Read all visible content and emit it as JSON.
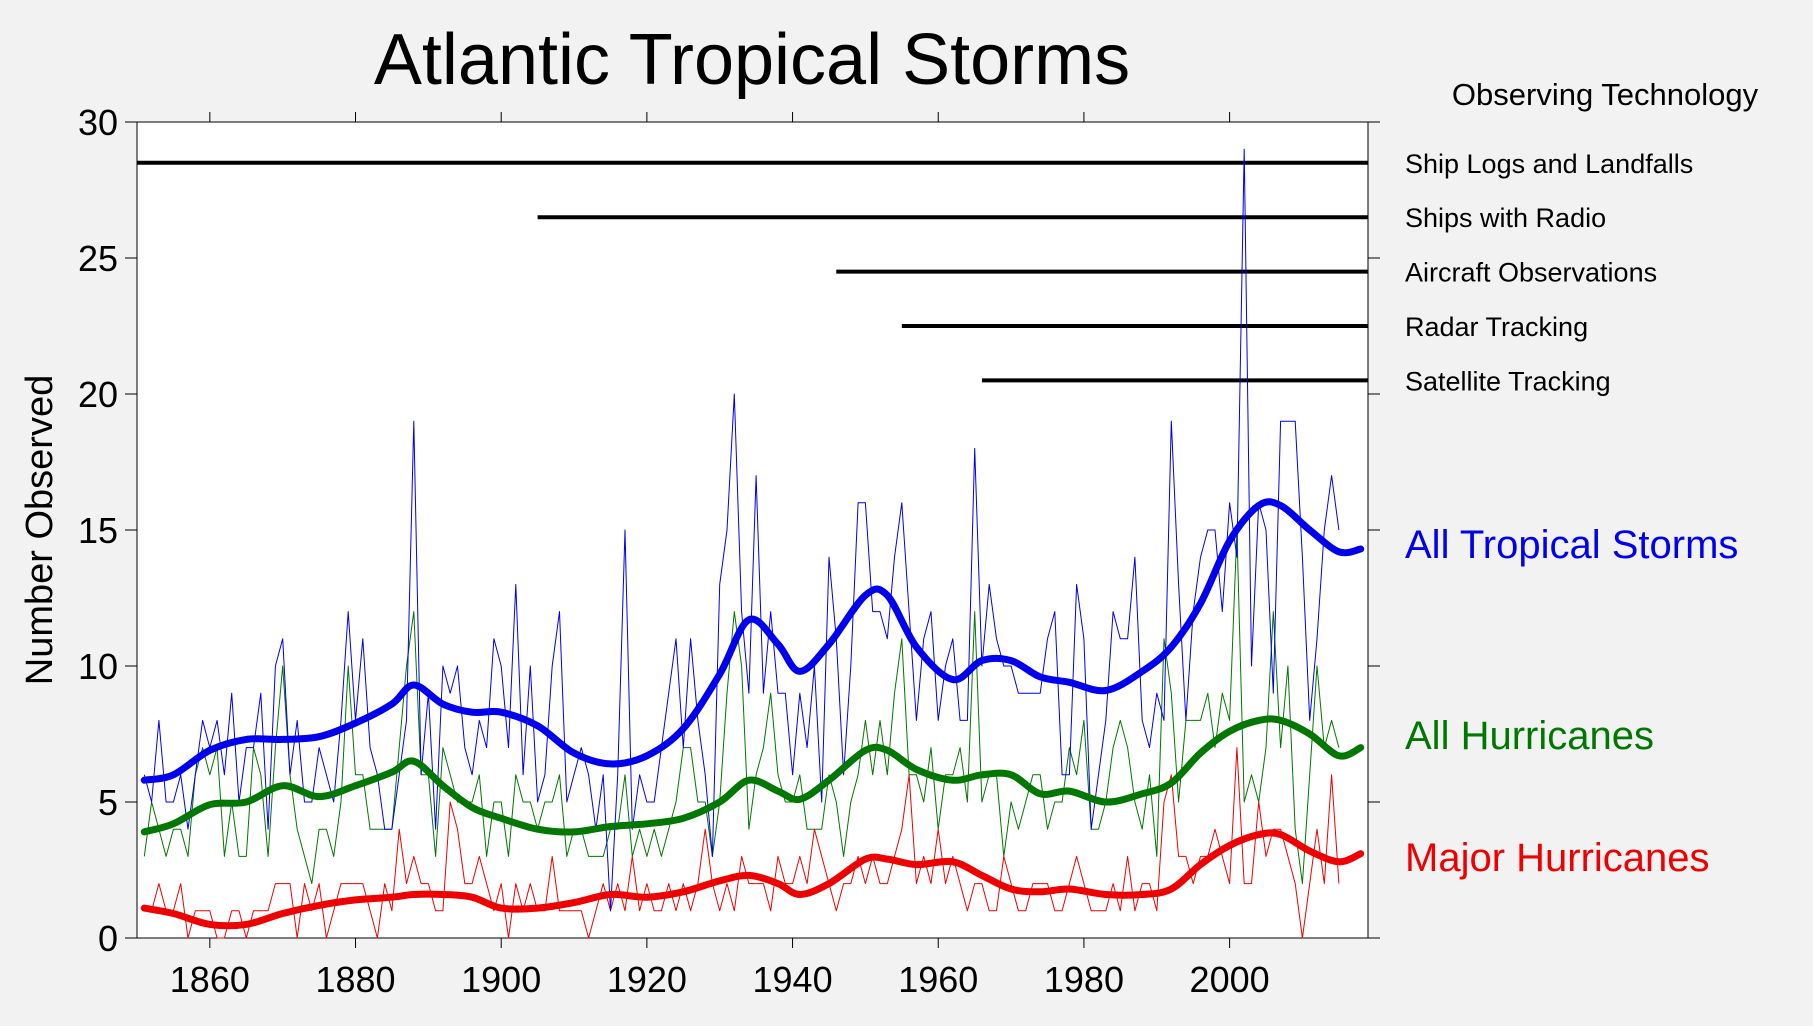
{
  "chart_data": {
    "type": "line",
    "title": "Atlantic Tropical Storms",
    "ylabel": "Number Observed",
    "xlabel": "",
    "xlim": [
      1850,
      2019
    ],
    "ylim": [
      0,
      30
    ],
    "x_ticks": [
      1860,
      1880,
      1900,
      1920,
      1940,
      1960,
      1980,
      2000
    ],
    "y_ticks": [
      0,
      5,
      10,
      15,
      20,
      25,
      30
    ],
    "grid": false,
    "tech_header": "Observing Technology",
    "technology": [
      {
        "label": "Ship Logs and Landfalls",
        "start": 1850,
        "level": 28.5
      },
      {
        "label": "Ships with Radio",
        "start": 1905,
        "level": 26.5
      },
      {
        "label": "Aircraft Observations",
        "start": 1946,
        "level": 24.5
      },
      {
        "label": "Radar Tracking",
        "start": 1955,
        "level": 22.5
      },
      {
        "label": "Satellite Tracking",
        "start": 1966,
        "level": 20.5
      }
    ],
    "x_start": 1851,
    "series": [
      {
        "name": "All Tropical Storms",
        "color": "#0000ee",
        "values": [
          6,
          5,
          8,
          5,
          5,
          6,
          4,
          6,
          8,
          7,
          8,
          6,
          9,
          5,
          7,
          7,
          9,
          4,
          10,
          11,
          6,
          8,
          5,
          5,
          7,
          6,
          5,
          8,
          12,
          8,
          11,
          7,
          6,
          4,
          4,
          6,
          8,
          19,
          6,
          9,
          4,
          10,
          9,
          10,
          7,
          6,
          8,
          7,
          11,
          10,
          7,
          13,
          6,
          10,
          5,
          6,
          10,
          12,
          5,
          6,
          7,
          6,
          4,
          6,
          1,
          6,
          15,
          4,
          6,
          5,
          5,
          7,
          9,
          11,
          7,
          11,
          8,
          6,
          3,
          13,
          15,
          20,
          12,
          9,
          17,
          9,
          12,
          9,
          9,
          6,
          9,
          7,
          10,
          5,
          14,
          11,
          6,
          10,
          16,
          16,
          12,
          12,
          11,
          14,
          16,
          12,
          8,
          11,
          12,
          8,
          10,
          11,
          8,
          8,
          18,
          10,
          13,
          11,
          10,
          10,
          9,
          9,
          9,
          9,
          11,
          12,
          6,
          6,
          13,
          11,
          4,
          6,
          8,
          12,
          11,
          11,
          14,
          8,
          7,
          9,
          8,
          19,
          13,
          8,
          12,
          14,
          15,
          15,
          12,
          16,
          14,
          29,
          10,
          16,
          15,
          9,
          19,
          19,
          19,
          14,
          8,
          11,
          15,
          17,
          15
        ]
      },
      {
        "name": "All Hurricanes",
        "color": "#007700",
        "values": [
          3,
          5,
          4,
          3,
          4,
          4,
          3,
          6,
          7,
          6,
          7,
          3,
          5,
          3,
          3,
          7,
          6,
          3,
          7,
          10,
          6,
          4,
          3,
          2,
          4,
          4,
          3,
          5,
          10,
          6,
          6,
          4,
          4,
          4,
          4,
          7,
          10,
          12,
          6,
          6,
          3,
          7,
          6,
          5,
          5,
          5,
          6,
          3,
          5,
          5,
          3,
          6,
          5,
          5,
          4,
          5,
          5,
          6,
          3,
          4,
          4,
          3,
          3,
          3,
          4,
          4,
          6,
          3,
          4,
          3,
          4,
          3,
          4,
          5,
          7,
          7,
          5,
          5,
          3,
          5,
          9,
          12,
          10,
          4,
          6,
          7,
          9,
          6,
          5,
          5,
          6,
          4,
          4,
          4,
          6,
          5,
          3,
          5,
          6,
          8,
          6,
          8,
          6,
          9,
          11,
          6,
          6,
          5,
          7,
          4,
          6,
          6,
          7,
          5,
          12,
          5,
          6,
          6,
          3,
          5,
          4,
          5,
          6,
          6,
          4,
          5,
          5,
          7,
          6,
          8,
          4,
          4,
          5,
          7,
          8,
          7,
          5,
          4,
          6,
          3,
          11,
          9,
          5,
          8,
          8,
          8,
          9,
          7,
          9,
          8,
          15,
          5,
          6,
          5,
          7,
          12,
          7,
          10,
          4,
          2,
          6,
          10,
          7,
          8,
          7
        ]
      },
      {
        "name": "Major Hurricanes",
        "color": "#ee0000",
        "values": [
          1,
          1,
          2,
          1,
          1,
          2,
          0,
          1,
          1,
          1,
          0,
          0,
          1,
          1,
          0,
          1,
          1,
          1,
          2,
          2,
          2,
          0,
          2,
          1,
          2,
          0,
          1,
          2,
          2,
          2,
          2,
          1,
          0,
          2,
          1,
          4,
          2,
          3,
          2,
          2,
          1,
          1,
          5,
          4,
          2,
          2,
          3,
          2,
          1,
          2,
          0,
          2,
          1,
          2,
          1,
          1,
          3,
          1,
          1,
          1,
          1,
          0,
          1,
          2,
          1,
          2,
          1,
          3,
          1,
          2,
          1,
          1,
          2,
          1,
          2,
          1,
          2,
          4,
          2,
          1,
          2,
          1,
          3,
          2,
          2,
          2,
          1,
          3,
          2,
          2,
          3,
          2,
          4,
          3,
          2,
          1,
          2,
          2,
          3,
          2,
          3,
          2,
          2,
          3,
          4,
          6,
          2,
          3,
          2,
          4,
          2,
          3,
          2,
          1,
          2,
          2,
          1,
          1,
          3,
          2,
          1,
          1,
          2,
          2,
          2,
          1,
          1,
          2,
          3,
          2,
          1,
          1,
          1,
          2,
          1,
          3,
          1,
          2,
          2,
          1,
          5,
          6,
          3,
          3,
          2,
          3,
          3,
          4,
          3,
          2,
          7,
          2,
          2,
          5,
          3,
          4,
          4,
          3,
          2,
          0,
          2,
          4,
          2,
          6,
          2
        ]
      }
    ],
    "smoothed": {
      "x": [
        1851,
        1855,
        1860,
        1865,
        1870,
        1875,
        1880,
        1885,
        1888,
        1892,
        1896,
        1900,
        1905,
        1910,
        1915,
        1920,
        1925,
        1930,
        1934,
        1938,
        1941,
        1945,
        1950,
        1953,
        1957,
        1962,
        1966,
        1970,
        1974,
        1978,
        1983,
        1988,
        1992,
        1996,
        2000,
        2004,
        2007,
        2011,
        2015,
        2018
      ],
      "series": [
        {
          "name": "All Tropical Storms",
          "color": "#0000ee",
          "values": [
            5.8,
            6.0,
            6.9,
            7.3,
            7.3,
            7.4,
            7.9,
            8.6,
            9.3,
            8.6,
            8.3,
            8.3,
            7.8,
            6.8,
            6.4,
            6.7,
            7.7,
            9.7,
            11.7,
            10.8,
            9.8,
            10.8,
            12.6,
            12.6,
            10.7,
            9.5,
            10.2,
            10.2,
            9.6,
            9.4,
            9.1,
            9.8,
            10.7,
            12.3,
            14.6,
            15.9,
            15.9,
            15.0,
            14.2,
            14.3
          ]
        },
        {
          "name": "All Hurricanes",
          "color": "#007700",
          "values": [
            3.9,
            4.2,
            4.9,
            5.0,
            5.6,
            5.2,
            5.6,
            6.1,
            6.5,
            5.6,
            4.8,
            4.4,
            4.0,
            3.9,
            4.1,
            4.2,
            4.4,
            5.0,
            5.8,
            5.4,
            5.1,
            5.8,
            6.9,
            6.9,
            6.2,
            5.8,
            6.0,
            6.0,
            5.3,
            5.4,
            5.0,
            5.3,
            5.7,
            6.8,
            7.6,
            8.0,
            8.0,
            7.5,
            6.7,
            7.0
          ]
        },
        {
          "name": "Major Hurricanes",
          "color": "#ee0000",
          "values": [
            1.1,
            0.9,
            0.5,
            0.5,
            0.9,
            1.2,
            1.4,
            1.5,
            1.6,
            1.6,
            1.5,
            1.1,
            1.1,
            1.3,
            1.6,
            1.5,
            1.7,
            2.1,
            2.3,
            2.0,
            1.6,
            2.0,
            2.9,
            2.9,
            2.7,
            2.8,
            2.3,
            1.8,
            1.7,
            1.8,
            1.6,
            1.6,
            1.8,
            2.7,
            3.4,
            3.8,
            3.8,
            3.2,
            2.8,
            3.1
          ]
        }
      ]
    }
  }
}
